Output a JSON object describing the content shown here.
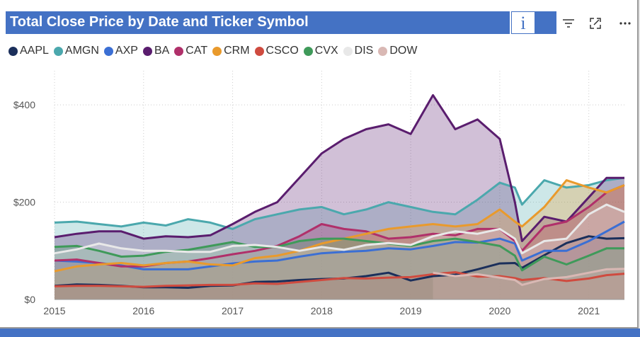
{
  "header": {
    "title": "Total Close Price by Date and Ticker Symbol",
    "info_icon": "info-icon",
    "filter_icon": "filter-icon",
    "focus_icon": "focus-mode-icon",
    "more_icon": "more-options-icon"
  },
  "colors": {
    "accent": "#4472c4"
  },
  "chart_data": {
    "type": "area",
    "title": "Total Close Price by Date and Ticker Symbol",
    "xlabel": "",
    "ylabel": "",
    "x_ticks": [
      "2015",
      "2016",
      "2017",
      "2018",
      "2019",
      "2020",
      "2021"
    ],
    "y_ticks": [
      "$0",
      "$200",
      "$400"
    ],
    "xlim": [
      2015.0,
      2021.4
    ],
    "ylim": [
      0,
      470
    ],
    "grid": true,
    "legend_position": "top-left",
    "x": [
      2015.0,
      2015.25,
      2015.5,
      2015.75,
      2016.0,
      2016.25,
      2016.5,
      2016.75,
      2017.0,
      2017.25,
      2017.5,
      2017.75,
      2018.0,
      2018.25,
      2018.5,
      2018.75,
      2019.0,
      2019.25,
      2019.5,
      2019.75,
      2020.0,
      2020.17,
      2020.25,
      2020.5,
      2020.75,
      2021.0,
      2021.2,
      2021.4
    ],
    "series": [
      {
        "name": "AAPL",
        "color": "#1b2f5b",
        "values": [
          28,
          31,
          30,
          28,
          25,
          25,
          24,
          28,
          29,
          36,
          37,
          40,
          42,
          43,
          48,
          55,
          39,
          48,
          51,
          62,
          74,
          75,
          65,
          91,
          116,
          130,
          125,
          126
        ]
      },
      {
        "name": "AMGN",
        "color": "#4ba8ad",
        "values": [
          158,
          160,
          155,
          150,
          158,
          152,
          165,
          158,
          145,
          165,
          175,
          185,
          190,
          175,
          185,
          200,
          190,
          180,
          175,
          205,
          240,
          230,
          195,
          245,
          230,
          235,
          245,
          250
        ]
      },
      {
        "name": "AXP",
        "color": "#3b6fd4",
        "values": [
          80,
          78,
          75,
          70,
          62,
          62,
          62,
          68,
          74,
          78,
          80,
          88,
          95,
          98,
          100,
          105,
          103,
          110,
          118,
          117,
          125,
          115,
          80,
          100,
          100,
          120,
          140,
          160
        ]
      },
      {
        "name": "BA",
        "color": "#5a1d6e",
        "values": [
          128,
          135,
          140,
          140,
          125,
          130,
          128,
          132,
          155,
          180,
          200,
          250,
          300,
          330,
          350,
          360,
          340,
          420,
          350,
          370,
          330,
          200,
          120,
          170,
          160,
          210,
          250,
          250
        ]
      },
      {
        "name": "CAT",
        "color": "#b0306a",
        "values": [
          80,
          82,
          75,
          68,
          68,
          75,
          78,
          85,
          93,
          100,
          110,
          130,
          155,
          145,
          140,
          125,
          128,
          135,
          132,
          145,
          145,
          120,
          100,
          150,
          160,
          190,
          220,
          235
        ]
      },
      {
        "name": "CRM",
        "color": "#e99a2c",
        "values": [
          58,
          68,
          72,
          75,
          70,
          75,
          78,
          72,
          70,
          85,
          90,
          100,
          115,
          125,
          135,
          145,
          150,
          155,
          150,
          155,
          185,
          160,
          150,
          190,
          245,
          230,
          220,
          235
        ]
      },
      {
        "name": "CSCO",
        "color": "#cf4b3f",
        "values": [
          27,
          28,
          28,
          27,
          26,
          28,
          29,
          30,
          30,
          33,
          32,
          36,
          40,
          44,
          43,
          45,
          46,
          52,
          56,
          47,
          48,
          44,
          40,
          44,
          38,
          43,
          50,
          53
        ]
      },
      {
        "name": "CVX",
        "color": "#3f9a5a",
        "values": [
          108,
          110,
          100,
          88,
          90,
          98,
          102,
          110,
          118,
          108,
          108,
          120,
          125,
          125,
          120,
          115,
          110,
          120,
          125,
          118,
          110,
          90,
          60,
          88,
          72,
          90,
          105,
          105
        ]
      },
      {
        "name": "DIS",
        "color": "#e8e8e8",
        "values": [
          95,
          103,
          115,
          105,
          100,
          100,
          98,
          98,
          110,
          112,
          108,
          100,
          108,
          102,
          112,
          116,
          112,
          130,
          140,
          135,
          145,
          125,
          95,
          120,
          125,
          175,
          195,
          180
        ]
      },
      {
        "name": "DOW",
        "color": "#d9b8b4",
        "values": [
          null,
          null,
          null,
          null,
          null,
          null,
          null,
          null,
          null,
          null,
          null,
          null,
          null,
          null,
          null,
          null,
          null,
          55,
          48,
          52,
          45,
          40,
          30,
          42,
          46,
          55,
          62,
          63
        ]
      }
    ]
  }
}
